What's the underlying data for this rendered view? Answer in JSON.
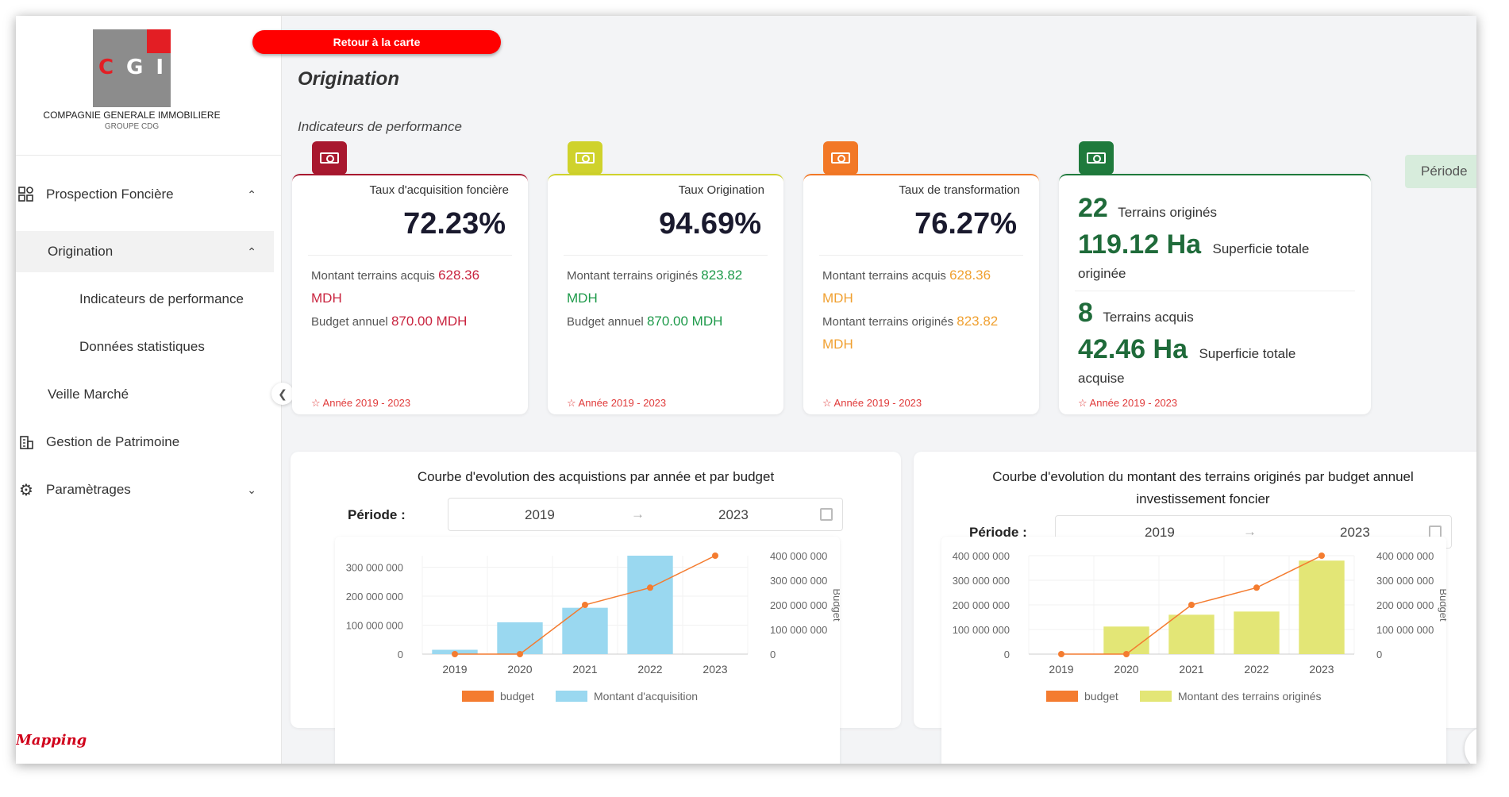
{
  "sidebar": {
    "logo_letters": [
      "C",
      "G",
      "I"
    ],
    "company_name": "COMPAGNIE GENERALE IMMOBILIERE",
    "company_sub": "GROUPE CDG",
    "items": [
      {
        "label": "Prospection Foncière",
        "icon": "grid-icon",
        "chevron": "^"
      },
      {
        "label": "Origination",
        "chevron": "^"
      },
      {
        "label": "Indicateurs de performance"
      },
      {
        "label": "Données statistiques"
      },
      {
        "label": "Veille Marché"
      },
      {
        "label": "Gestion de Patrimoine",
        "icon": "building-icon"
      },
      {
        "label": "Paramètrages",
        "icon": "gear-icon",
        "chevron": "v"
      }
    ],
    "footer_logo": "Mapping"
  },
  "header": {
    "back_button": "Retour à la carte",
    "page_title": "Origination",
    "section_title": "Indicateurs de performance",
    "periode_button": "Période"
  },
  "colors": {
    "kpi1": "#a8182f",
    "kpi2": "#cfd22c",
    "kpi3": "#f27826",
    "kpi4": "#1f7a3c",
    "bar1": "#9ad8f0",
    "bar2": "#e3e676",
    "line": "#f47c30"
  },
  "kpis": [
    {
      "label": "Taux d'acquisition foncière",
      "value": "72.23%",
      "l1": "Montant terrains acquis",
      "v1": "628.36",
      "l1b": "MDH",
      "l2": "Budget annuel",
      "v2": "870.00 MDH",
      "footer": "☆ Année 2019 - 2023"
    },
    {
      "label": "Taux Origination",
      "value": "94.69%",
      "l1": "Montant terrains originés",
      "v1": "823.82",
      "l1b": "MDH",
      "l2": "Budget annuel",
      "v2": "870.00 MDH",
      "footer": "☆ Année 2019 - 2023"
    },
    {
      "label": "Taux de transformation",
      "value": "76.27%",
      "l1": "Montant terrains acquis",
      "v1": "628.36",
      "l1b": "MDH",
      "l2": "Montant terrains originés",
      "v2": "823.82",
      "l2b": "MDH",
      "footer": "☆ Année 2019 - 2023"
    }
  ],
  "summary": {
    "orig_count": "22",
    "orig_count_label": "Terrains originés",
    "orig_area": "119.12 Ha",
    "orig_area_label": "Superficie totale",
    "orig_area_label2": "originée",
    "acq_count": "8",
    "acq_count_label": "Terrains acquis",
    "acq_area": "42.46 Ha",
    "acq_area_label": "Superficie totale",
    "acq_area_label2": "acquise",
    "footer": "☆ Année 2019 - 2023"
  },
  "charts_meta": {
    "left_title": "Courbe d'evolution des acquistions par année et par budget",
    "right_title_1": "Courbe d'evolution du montant des terrains originés par budget annuel",
    "right_title_2": "investissement foncier",
    "period_label": "Période :",
    "from": "2019",
    "to": "2023",
    "y2_label": "Budget"
  },
  "chart_data": [
    {
      "type": "bar",
      "title": "Courbe d'evolution des acquistions par année et par budget",
      "categories": [
        "2019",
        "2020",
        "2021",
        "2022",
        "2023"
      ],
      "series": [
        {
          "name": "budget",
          "type": "line",
          "axis": "right",
          "values": [
            0,
            0,
            200000000,
            270000000,
            400000000
          ]
        },
        {
          "name": "Montant d'acquisition",
          "type": "bar",
          "axis": "left",
          "values": [
            15000000,
            110000000,
            160000000,
            340000000,
            0
          ]
        }
      ],
      "y_left_ticks": [
        "0",
        "100 000 000",
        "200 000 000",
        "300 000 000"
      ],
      "y_left_max": 340000000,
      "y_right_ticks": [
        "0",
        "100 000 000",
        "200 000 000",
        "300 000 000",
        "400 000 000"
      ],
      "y_right_max": 400000000,
      "y_right_label": "Budget",
      "legend": "bottom"
    },
    {
      "type": "bar",
      "title": "Courbe d'evolution du montant des terrains originés par budget annuel investissement foncier",
      "categories": [
        "2019",
        "2020",
        "2021",
        "2022",
        "2023"
      ],
      "series": [
        {
          "name": "budget",
          "type": "line",
          "axis": "right",
          "values": [
            0,
            0,
            200000000,
            270000000,
            400000000
          ]
        },
        {
          "name": "Montant des terrains originés",
          "type": "bar",
          "axis": "left",
          "values": [
            0,
            112000000,
            160000000,
            173000000,
            380000000
          ]
        }
      ],
      "y_left_ticks": [
        "0",
        "100 000 000",
        "200 000 000",
        "300 000 000",
        "400 000 000"
      ],
      "y_left_max": 400000000,
      "y_right_ticks": [
        "0",
        "100 000 000",
        "200 000 000",
        "300 000 000",
        "400 000 000"
      ],
      "y_right_max": 400000000,
      "y_right_label": "Budget",
      "legend": "bottom"
    }
  ]
}
